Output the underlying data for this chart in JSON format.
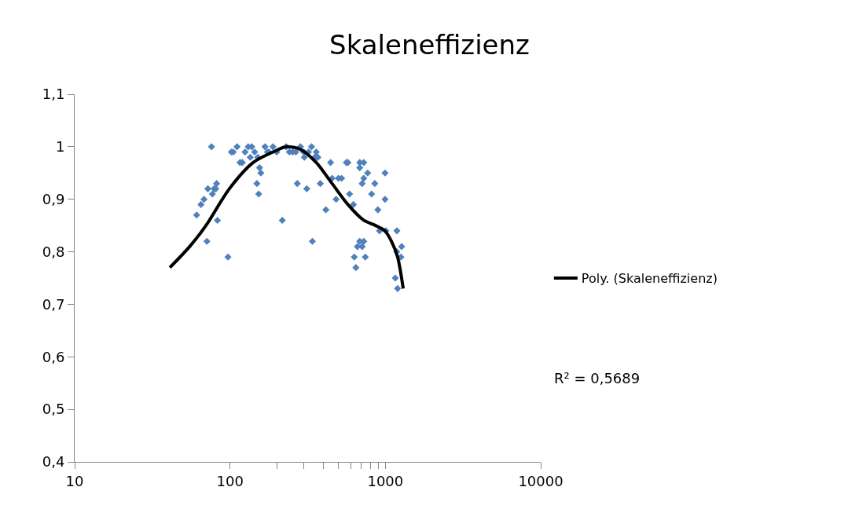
{
  "chart_data": {
    "type": "scatter",
    "title": "Skaleneffizienz",
    "log": "x",
    "xlim": [
      10,
      10000
    ],
    "xticks": [
      10,
      100,
      {
        "value": 200,
        "label": null
      },
      {
        "value": 300,
        "label": null
      },
      {
        "value": 400,
        "label": null
      },
      {
        "value": 500,
        "label": null
      },
      {
        "value": 600,
        "label": null
      },
      {
        "value": 700,
        "label": null
      },
      {
        "value": 800,
        "label": null
      },
      {
        "value": 900,
        "label": null
      },
      1000,
      10000
    ],
    "ylim": [
      0.4,
      1.1
    ],
    "yticks": [
      {
        "value": 0.4,
        "label": "0,4"
      },
      {
        "value": 0.5,
        "label": "0,5"
      },
      {
        "value": 0.6,
        "label": "0,6"
      },
      {
        "value": 0.7,
        "label": "0,7"
      },
      {
        "value": 0.8,
        "label": "0,8"
      },
      {
        "value": 0.9,
        "label": "0,9"
      },
      {
        "value": 1.0,
        "label": "1"
      },
      {
        "value": 1.1,
        "label": "1,1"
      }
    ],
    "legend": "right",
    "annotations": [
      "R² = 0,5689"
    ],
    "series": [
      {
        "color": "#4f81bd",
        "marker": "diamond",
        "x": [
          61,
          65,
          68,
          71,
          72,
          76,
          77,
          79,
          81,
          82,
          83,
          97,
          102,
          105,
          111,
          116,
          120,
          125,
          131,
          135,
          138,
          144,
          149,
          151,
          153,
          155,
          158,
          168,
          174,
          178,
          189,
          200,
          217,
          230,
          241,
          253,
          265,
          271,
          284,
          298,
          301,
          312,
          320,
          335,
          339,
          351,
          359,
          364,
          368,
          381,
          414,
          444,
          454,
          482,
          499,
          523,
          561,
          574,
          588,
          623,
          631,
          646,
          661,
          684,
          709,
          726,
          743,
          709,
          726,
          816,
          855,
          895,
          917,
          995,
          1007,
          1159,
          1199,
          1186,
          995,
          1186,
          1259,
          1273,
          684,
          726,
          769,
          684
        ],
        "values": [
          0.87,
          0.89,
          0.9,
          0.82,
          0.92,
          1.0,
          0.91,
          0.92,
          0.92,
          0.93,
          0.86,
          0.79,
          0.99,
          0.99,
          1.0,
          0.97,
          0.97,
          0.99,
          1.0,
          0.98,
          1.0,
          0.99,
          0.93,
          0.98,
          0.91,
          0.96,
          0.95,
          1.0,
          0.99,
          0.99,
          1.0,
          0.99,
          0.86,
          1.0,
          0.99,
          0.99,
          0.99,
          0.93,
          1.0,
          0.99,
          0.98,
          0.92,
          0.99,
          1.0,
          0.82,
          0.98,
          0.99,
          0.98,
          0.98,
          0.93,
          0.88,
          0.97,
          0.94,
          0.9,
          0.94,
          0.94,
          0.97,
          0.97,
          0.91,
          0.89,
          0.79,
          0.77,
          0.81,
          0.82,
          0.81,
          0.82,
          0.79,
          0.93,
          0.94,
          0.91,
          0.93,
          0.88,
          0.84,
          0.9,
          0.84,
          0.75,
          0.73,
          0.84,
          0.95,
          0.8,
          0.79,
          0.81,
          0.97,
          0.97,
          0.95,
          0.96
        ]
      },
      {
        "type": "line",
        "name": "Poly. (Skaleneffizienz)",
        "color": "#000000",
        "marker": "none",
        "line_style": "solid",
        "x": [
          41,
          55,
          70,
          99,
          141,
          189,
          230,
          284,
          359,
          454,
          574,
          726,
          865,
          995,
          1094,
          1199,
          1303
        ],
        "values": [
          0.77,
          0.81,
          0.85,
          0.92,
          0.97,
          0.99,
          1.0,
          0.995,
          0.97,
          0.93,
          0.89,
          0.86,
          0.85,
          0.84,
          0.82,
          0.79,
          0.73
        ]
      }
    ]
  }
}
